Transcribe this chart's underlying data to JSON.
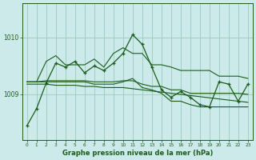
{
  "title": "Graphe pression niveau de la mer (hPa)",
  "bg_color": "#cceaea",
  "grid_color": "#99ccbb",
  "line_color": "#1a5c1a",
  "xlim": [
    -0.5,
    23.5
  ],
  "ylim": [
    1008.2,
    1010.6
  ],
  "yticks": [
    1009,
    1010
  ],
  "xticks": [
    0,
    1,
    2,
    3,
    4,
    5,
    6,
    7,
    8,
    9,
    10,
    11,
    12,
    13,
    14,
    15,
    16,
    17,
    18,
    19,
    20,
    21,
    22,
    23
  ],
  "main_series": [
    1008.45,
    1008.75,
    1009.2,
    1009.55,
    1009.48,
    1009.58,
    1009.38,
    1009.5,
    1009.42,
    1009.55,
    1009.72,
    1010.05,
    1009.88,
    1009.48,
    1009.08,
    1008.95,
    1009.05,
    1008.95,
    1008.82,
    1008.78,
    1009.22,
    1009.18,
    1008.88,
    1009.18
  ],
  "upper_series": [
    1009.22,
    1009.22,
    1009.58,
    1009.68,
    1009.52,
    1009.52,
    1009.52,
    1009.62,
    1009.48,
    1009.72,
    1009.82,
    1009.72,
    1009.72,
    1009.52,
    1009.52,
    1009.48,
    1009.42,
    1009.42,
    1009.42,
    1009.42,
    1009.32,
    1009.32,
    1009.32,
    1009.28
  ],
  "lower_series": [
    1009.22,
    1009.22,
    1009.22,
    1009.22,
    1009.22,
    1009.22,
    1009.22,
    1009.18,
    1009.18,
    1009.18,
    1009.22,
    1009.28,
    1009.12,
    1009.08,
    1009.02,
    1008.88,
    1008.88,
    1008.82,
    1008.78,
    1008.78,
    1008.78,
    1008.78,
    1008.78,
    1008.78
  ],
  "trend_upper": [
    1009.22,
    1009.22,
    1009.24,
    1009.24,
    1009.24,
    1009.24,
    1009.24,
    1009.22,
    1009.22,
    1009.22,
    1009.24,
    1009.24,
    1009.18,
    1009.14,
    1009.14,
    1009.08,
    1009.08,
    1009.02,
    1009.02,
    1009.02,
    1009.02,
    1009.02,
    1009.02,
    1009.0
  ],
  "trend_lower": [
    1009.18,
    1009.18,
    1009.18,
    1009.16,
    1009.16,
    1009.16,
    1009.14,
    1009.14,
    1009.12,
    1009.12,
    1009.12,
    1009.1,
    1009.08,
    1009.06,
    1009.04,
    1009.02,
    1009.0,
    1008.98,
    1008.96,
    1008.94,
    1008.92,
    1008.9,
    1008.88,
    1008.86
  ]
}
